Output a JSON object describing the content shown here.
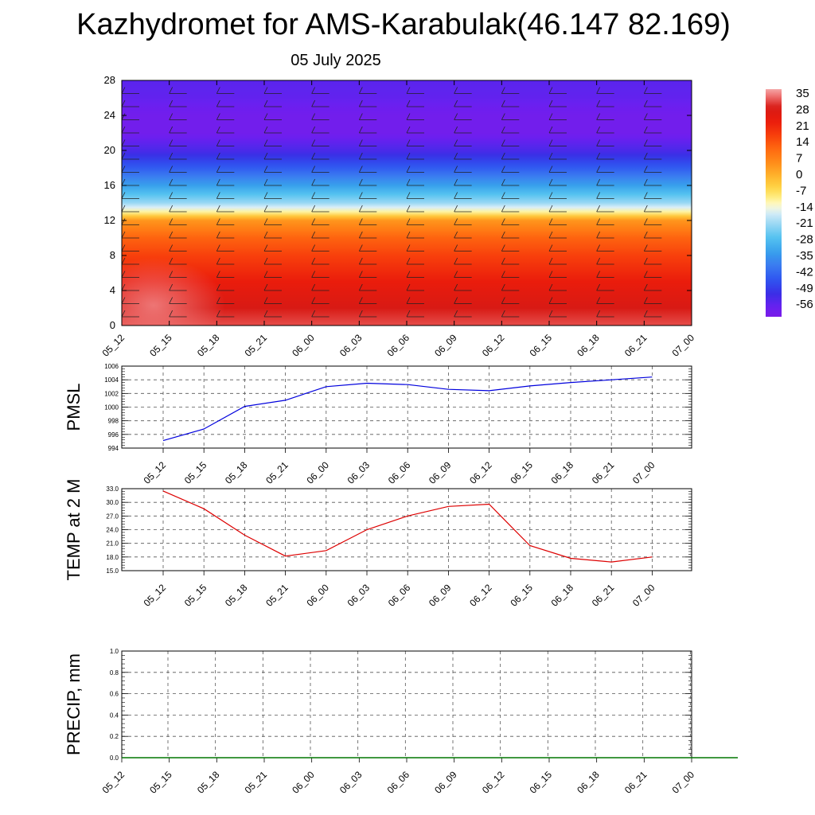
{
  "title": "Kazhydromet for AMS-Karabulak(46.147 82.169)",
  "subtitle": "05 July 2025",
  "chart_data": [
    {
      "type": "heatmap",
      "x": [
        "05_12",
        "05_15",
        "05_18",
        "05_21",
        "06_00",
        "06_03",
        "06_06",
        "06_09",
        "06_12",
        "06_15",
        "06_18",
        "06_21",
        "07_00"
      ],
      "ylim": [
        0,
        28
      ],
      "yticks": [
        "0",
        "4",
        "8",
        "12",
        "16",
        "20",
        "24",
        "28"
      ],
      "colorbar_labels": [
        "35",
        "28",
        "21",
        "14",
        "7",
        "0",
        "-7",
        "-14",
        "-21",
        "-28",
        "-35",
        "-42",
        "-49",
        "-56"
      ],
      "colorbar_range": [
        -60,
        38
      ],
      "temperature_profile_by_y": [
        [
          0,
          33
        ],
        [
          2,
          30
        ],
        [
          4,
          26
        ],
        [
          6,
          22
        ],
        [
          8,
          18
        ],
        [
          10,
          13
        ],
        [
          12,
          5
        ],
        [
          13,
          -10
        ],
        [
          14,
          -20
        ],
        [
          16,
          -32
        ],
        [
          18,
          -43
        ],
        [
          20,
          -52
        ],
        [
          22,
          -58
        ],
        [
          24,
          -58
        ],
        [
          26,
          -55
        ],
        [
          28,
          -54
        ]
      ],
      "grid": false
    },
    {
      "type": "line",
      "ylabel": "PMSL",
      "x": [
        "05_12",
        "05_15",
        "05_18",
        "05_21",
        "06_00",
        "06_03",
        "06_06",
        "06_09",
        "06_12",
        "06_15",
        "06_18",
        "06_21",
        "07_00"
      ],
      "values": [
        995.1,
        996.8,
        1000.1,
        1001.0,
        1003.0,
        1003.5,
        1003.3,
        1002.6,
        1002.4,
        1003.1,
        1003.6,
        1004.0,
        1004.4
      ],
      "ylim": [
        994,
        1006
      ],
      "yticks": [
        "994",
        "996",
        "998",
        "1000",
        "1002",
        "1004",
        "1006"
      ],
      "color": "#0000dd",
      "grid": true
    },
    {
      "type": "line",
      "ylabel": "TEMP at 2 M",
      "x": [
        "05_12",
        "05_15",
        "05_18",
        "05_21",
        "06_00",
        "06_03",
        "06_06",
        "06_09",
        "06_12",
        "06_15",
        "06_18",
        "06_21",
        "07_00"
      ],
      "values": [
        32.5,
        28.6,
        22.8,
        18.2,
        19.4,
        24.0,
        27.0,
        29.1,
        29.6,
        20.5,
        17.7,
        16.9,
        18.0
      ],
      "ylim": [
        15,
        33
      ],
      "yticks": [
        "15.0",
        "18.0",
        "21.0",
        "24.0",
        "27.0",
        "30.0",
        "33.0"
      ],
      "color": "#dd0000",
      "grid": true
    },
    {
      "type": "line",
      "ylabel": "PRECIP, mm",
      "x": [
        "05_12",
        "05_15",
        "05_18",
        "05_21",
        "06_00",
        "06_03",
        "06_06",
        "06_09",
        "06_12",
        "06_15",
        "06_18",
        "06_21",
        "07_00"
      ],
      "values": [
        0,
        0,
        0,
        0,
        0,
        0,
        0,
        0,
        0,
        0,
        0,
        0,
        0
      ],
      "ylim": [
        0,
        1
      ],
      "yticks": [
        "0.0",
        "0.2",
        "0.4",
        "0.6",
        "0.8",
        "1.0"
      ],
      "color": "#007700",
      "grid": true
    }
  ]
}
